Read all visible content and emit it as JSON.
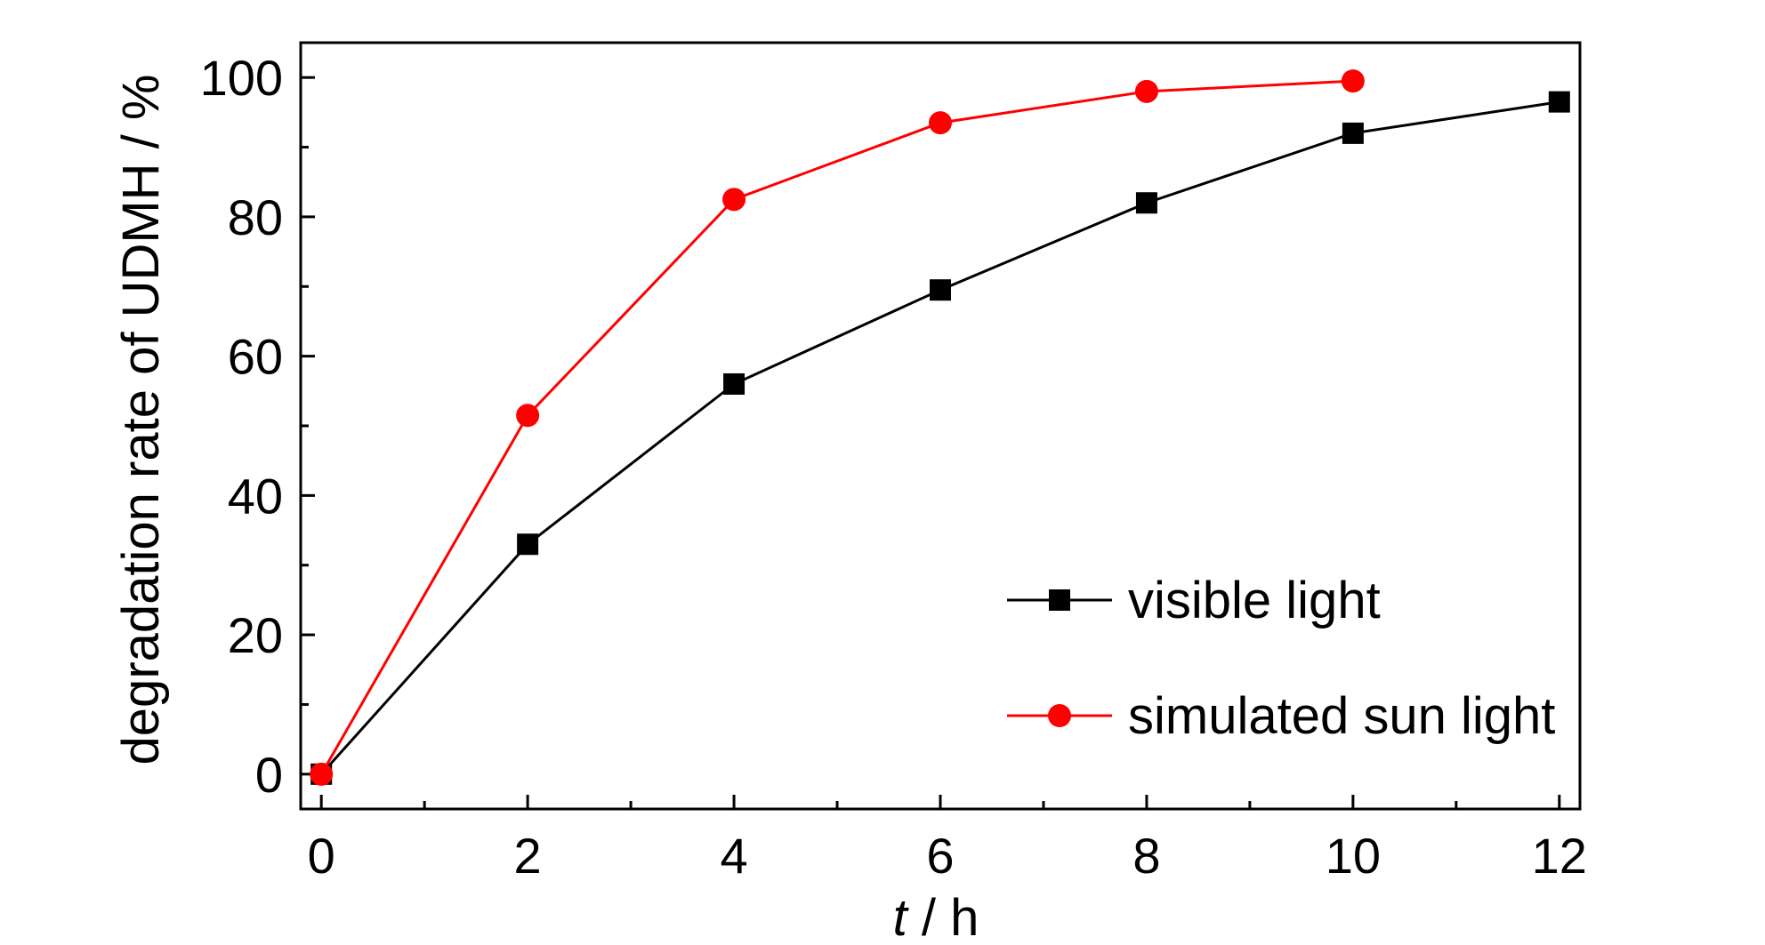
{
  "chart_data": {
    "type": "line",
    "xlabel_var": "t",
    "xlabel_unit": " / h",
    "ylabel": "degradation rate of UDMH / %",
    "xlim": [
      -0.2,
      12.2
    ],
    "ylim": [
      -5,
      105
    ],
    "x_ticks": [
      0,
      2,
      4,
      6,
      8,
      10,
      12
    ],
    "x_minor_ticks": [
      1,
      3,
      5,
      7,
      9,
      11
    ],
    "y_ticks": [
      0,
      20,
      40,
      60,
      80,
      100
    ],
    "y_minor_ticks": [
      10,
      30,
      50,
      70,
      90
    ],
    "grid": false,
    "legend_position": "bottom-right",
    "series": [
      {
        "name": "visible light",
        "color": "#000000",
        "marker": "square",
        "x": [
          0,
          2,
          4,
          6,
          8,
          10,
          12
        ],
        "y": [
          0,
          33,
          56,
          69.5,
          82,
          92,
          96.5
        ]
      },
      {
        "name": "simulated sun light",
        "color": "#ff0000",
        "marker": "circle",
        "x": [
          0,
          2,
          4,
          6,
          8,
          10
        ],
        "y": [
          0,
          51.5,
          82.5,
          93.5,
          98,
          99.5
        ]
      }
    ]
  }
}
